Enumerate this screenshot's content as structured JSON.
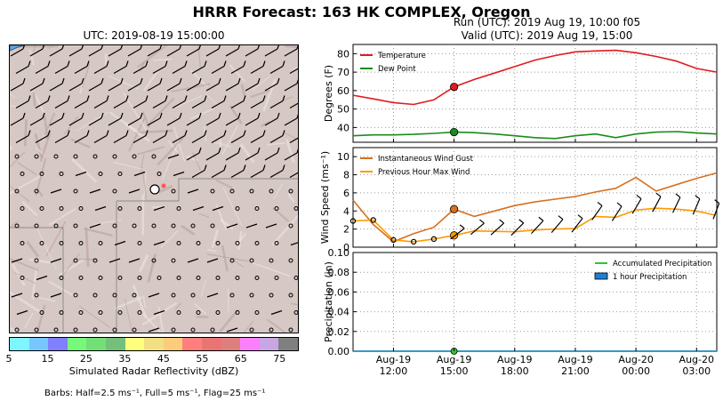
{
  "title": "HRRR Forecast: 163 HK COMPLEX, Oregon",
  "map_panel": {
    "title": "UTC: 2019-08-19 15:00:00",
    "colorbar": {
      "label": "Simulated Radar Reflectivity (dBZ)",
      "ticks": [
        "5",
        "15",
        "25",
        "35",
        "45",
        "55",
        "65",
        "75"
      ],
      "colors": [
        "#7ff5ff",
        "#77c6ff",
        "#8080ff",
        "#77f87b",
        "#72df77",
        "#74c07a",
        "#ffff7e",
        "#f1e083",
        "#fdcb7c",
        "#fe7f7e",
        "#e87574",
        "#de7f7f",
        "#fb80fb",
        "#c8a6e3",
        "#808080"
      ]
    },
    "barb_note": "Barbs: Half=2.5 ms⁻¹, Full=5 ms⁻¹, Flag=25 ms⁻¹"
  },
  "run_label": "Run (UTC): 2019 Aug 19, 10:00 f05",
  "valid_label": "Valid (UTC): 2019 Aug 19, 15:00",
  "chart_data": [
    {
      "type": "line",
      "ylabel": "Degrees (F)",
      "ylim": [
        32,
        85
      ],
      "yticks": [
        40,
        50,
        60,
        70,
        80
      ],
      "x_hours": [
        10,
        11,
        12,
        13,
        14,
        15,
        16,
        17,
        18,
        19,
        20,
        21,
        22,
        23,
        24,
        25,
        26,
        27,
        28
      ],
      "series": [
        {
          "name": "Temperature",
          "color": "#e31a1c",
          "values": [
            57.5,
            55.5,
            53.5,
            52.5,
            55.0,
            62.0,
            66.0,
            69.5,
            73.0,
            76.5,
            79.0,
            81.0,
            81.5,
            81.8,
            80.5,
            78.5,
            76.0,
            72.0,
            70.0
          ]
        },
        {
          "name": "Dew Point",
          "color": "#1a8c1a",
          "values": [
            35.5,
            36.0,
            36.0,
            36.3,
            36.8,
            37.5,
            37.2,
            36.5,
            35.5,
            34.5,
            34.0,
            35.5,
            36.5,
            34.5,
            36.5,
            37.5,
            37.8,
            37.0,
            36.5
          ]
        }
      ],
      "highlight_x": 15,
      "legend": "top-left",
      "grid": true
    },
    {
      "type": "line",
      "ylabel": "Wind Speed (ms⁻¹)",
      "ylim": [
        0,
        11
      ],
      "yticks": [
        0,
        2,
        4,
        6,
        8,
        10
      ],
      "x_hours": [
        10,
        11,
        12,
        13,
        14,
        15,
        16,
        17,
        18,
        19,
        20,
        21,
        22,
        23,
        24,
        25,
        26,
        27,
        28
      ],
      "series": [
        {
          "name": "Instantaneous Wind Gust",
          "color": "#d7701f",
          "values": [
            5.2,
            2.5,
            0.6,
            1.5,
            2.2,
            4.2,
            3.4,
            4.0,
            4.6,
            5.0,
            5.3,
            5.6,
            6.1,
            6.5,
            7.7,
            6.2,
            6.9,
            7.6,
            8.2
          ]
        },
        {
          "name": "Previous Hour Max Wind",
          "color": "#ff9a00",
          "values": [
            2.9,
            3.0,
            0.8,
            0.6,
            0.9,
            1.3,
            1.8,
            1.75,
            1.7,
            1.9,
            2.0,
            2.05,
            3.4,
            3.3,
            4.1,
            4.3,
            4.2,
            4.0,
            3.5
          ]
        }
      ],
      "highlight_x": 15,
      "legend": "top-left",
      "grid": true
    },
    {
      "type": "area",
      "ylabel": "Precipitation (in)",
      "ylim": [
        0,
        0.1
      ],
      "yticks": [
        "0.00",
        "0.02",
        "0.04",
        "0.06",
        "0.08",
        "0.10"
      ],
      "x_hours": [
        10,
        11,
        12,
        13,
        14,
        15,
        16,
        17,
        18,
        19,
        20,
        21,
        22,
        23,
        24,
        25,
        26,
        27,
        28
      ],
      "series": [
        {
          "name": "Accumulated Precipitation",
          "color": "#2ec82e",
          "values": [
            0,
            0,
            0,
            0,
            0,
            0,
            0,
            0,
            0,
            0,
            0,
            0,
            0,
            0,
            0,
            0,
            0,
            0,
            0
          ]
        },
        {
          "name": "1 hour Precipitation",
          "color": "#1e7fd8",
          "values": [
            0,
            0,
            0,
            0,
            0,
            0,
            0,
            0,
            0,
            0,
            0,
            0,
            0,
            0,
            0,
            0,
            0,
            0,
            0
          ]
        }
      ],
      "highlight_x": 15,
      "legend": "top-right",
      "grid": true
    }
  ],
  "x_axis": {
    "ticks": [
      {
        "hour": 12,
        "label1": "Aug-19",
        "label2": "12:00"
      },
      {
        "hour": 15,
        "label1": "Aug-19",
        "label2": "15:00"
      },
      {
        "hour": 18,
        "label1": "Aug-19",
        "label2": "18:00"
      },
      {
        "hour": 21,
        "label1": "Aug-19",
        "label2": "21:00"
      },
      {
        "hour": 24,
        "label1": "Aug-20",
        "label2": "00:00"
      },
      {
        "hour": 27,
        "label1": "Aug-20",
        "label2": "03:00"
      }
    ]
  }
}
